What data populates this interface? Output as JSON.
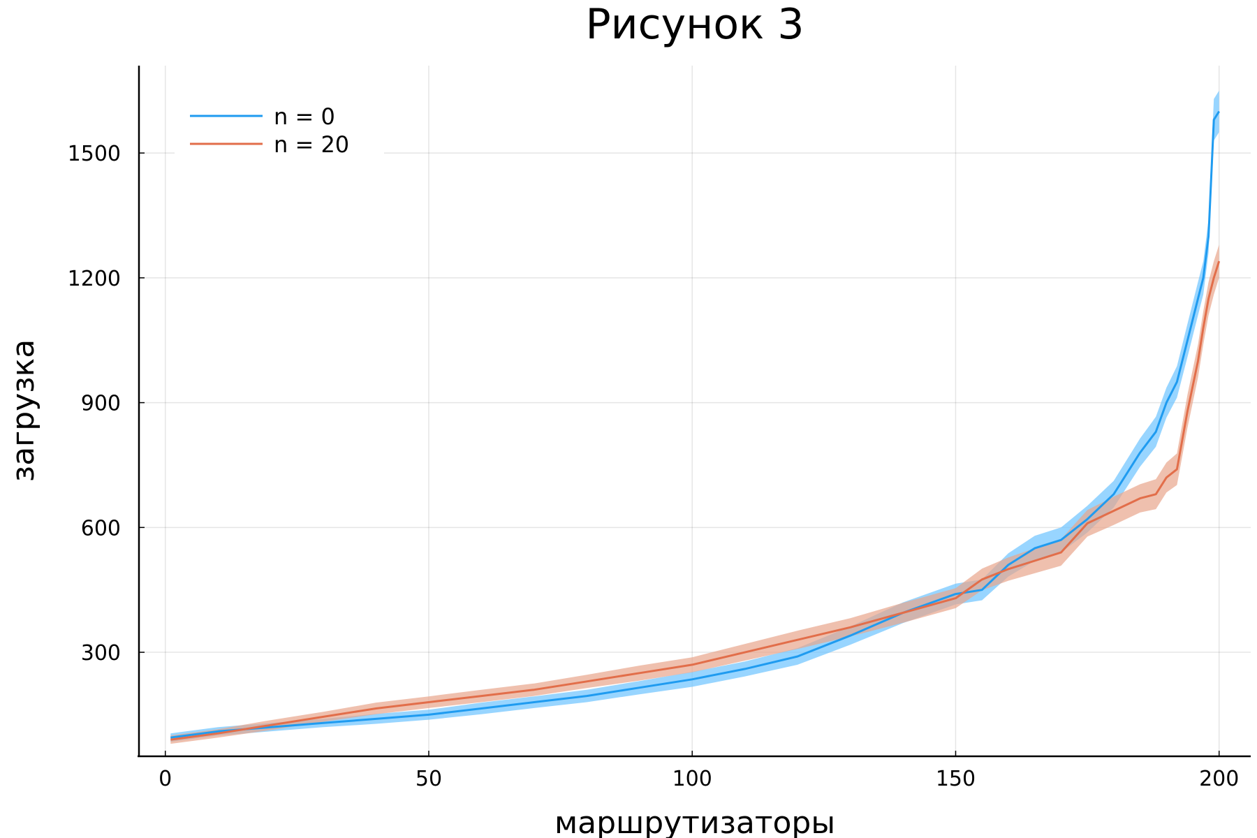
{
  "chart_data": {
    "type": "line",
    "title": "Рисунок 3",
    "xlabel": "маршрутизаторы",
    "ylabel": "загрузка",
    "xlim": [
      -5,
      206
    ],
    "ylim": [
      50,
      1710
    ],
    "x_ticks": [
      0,
      50,
      100,
      150,
      200
    ],
    "x_tick_labels": [
      "0",
      "50",
      "100",
      "150",
      "200"
    ],
    "y_ticks": [
      300,
      600,
      900,
      1200,
      1500
    ],
    "y_tick_labels": [
      "300",
      "600",
      "900",
      "1200",
      "1500"
    ],
    "grid": true,
    "legend_position": "top-left",
    "x": [
      1,
      10,
      20,
      30,
      40,
      50,
      60,
      70,
      80,
      90,
      100,
      110,
      120,
      130,
      140,
      150,
      155,
      160,
      165,
      170,
      175,
      180,
      185,
      188,
      190,
      192,
      194,
      196,
      197,
      198,
      199,
      200
    ],
    "series": [
      {
        "name": "n = 0",
        "color": "#1f9bf0",
        "band_color": "#6cc3ff",
        "values": [
          95,
          110,
          120,
          130,
          140,
          150,
          165,
          180,
          195,
          215,
          235,
          260,
          290,
          340,
          395,
          440,
          450,
          510,
          550,
          570,
          620,
          680,
          780,
          830,
          900,
          950,
          1050,
          1150,
          1200,
          1300,
          1580,
          1600
        ],
        "band_halfwidth": [
          10,
          10,
          10,
          10,
          12,
          12,
          14,
          14,
          15,
          16,
          18,
          18,
          20,
          22,
          25,
          25,
          25,
          28,
          30,
          30,
          32,
          32,
          34,
          36,
          36,
          38,
          40,
          40,
          40,
          40,
          50,
          50
        ]
      },
      {
        "name": "n = 20",
        "color": "#e26e4a",
        "band_color": "#e8a58c",
        "values": [
          90,
          105,
          125,
          145,
          165,
          180,
          195,
          210,
          230,
          250,
          270,
          300,
          330,
          360,
          395,
          430,
          475,
          500,
          520,
          540,
          610,
          640,
          670,
          680,
          720,
          740,
          880,
          1000,
          1080,
          1150,
          1200,
          1240
        ],
        "band_halfwidth": [
          10,
          10,
          12,
          12,
          14,
          14,
          15,
          15,
          16,
          18,
          18,
          20,
          22,
          22,
          24,
          24,
          26,
          28,
          30,
          32,
          32,
          34,
          34,
          36,
          36,
          38,
          40,
          40,
          40,
          40,
          40,
          40
        ]
      }
    ]
  }
}
